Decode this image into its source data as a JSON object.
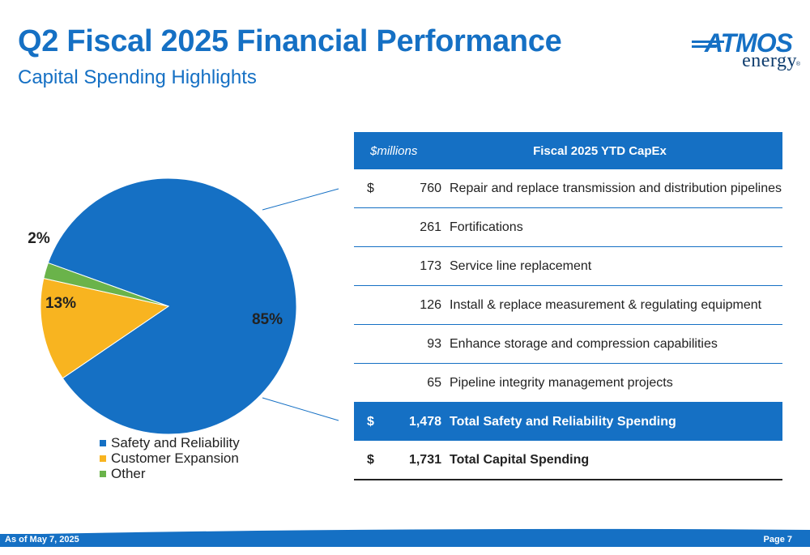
{
  "header": {
    "title": "Q2 Fiscal 2025 Financial Performance",
    "subtitle": "Capital Spending Highlights"
  },
  "logo": {
    "top": "ATMOS",
    "bottom": "energy",
    "mark": "®"
  },
  "chart_data": {
    "type": "pie",
    "categories": [
      "Safety and Reliability",
      "Customer Expansion",
      "Other"
    ],
    "values": [
      85,
      13,
      2
    ],
    "labels": [
      "85%",
      "13%",
      "2%"
    ],
    "colors": [
      "#1570c4",
      "#f8b420",
      "#6ab34a"
    ],
    "legend_position": "bottom"
  },
  "table": {
    "unit_label": "$millions",
    "header": "Fiscal 2025 YTD CapEx",
    "rows": [
      {
        "currency": "$",
        "amount": "760",
        "description": "Repair and replace transmission and distribution pipelines"
      },
      {
        "currency": "",
        "amount": "261",
        "description": "Fortifications"
      },
      {
        "currency": "",
        "amount": "173",
        "description": "Service line replacement"
      },
      {
        "currency": "",
        "amount": "126",
        "description": "Install & replace measurement & regulating equipment"
      },
      {
        "currency": "",
        "amount": "93",
        "description": "Enhance storage and compression capabilities"
      },
      {
        "currency": "",
        "amount": "65",
        "description": "Pipeline integrity management projects"
      }
    ],
    "total_safety": {
      "currency": "$",
      "amount": "1,478",
      "description": "Total Safety and Reliability Spending"
    },
    "total_capital": {
      "currency": "$",
      "amount": "1,731",
      "description": "Total Capital Spending"
    }
  },
  "footer": {
    "date": "As of May 7, 2025",
    "page": "Page 7"
  },
  "colors": {
    "brand": "#1570c4"
  }
}
